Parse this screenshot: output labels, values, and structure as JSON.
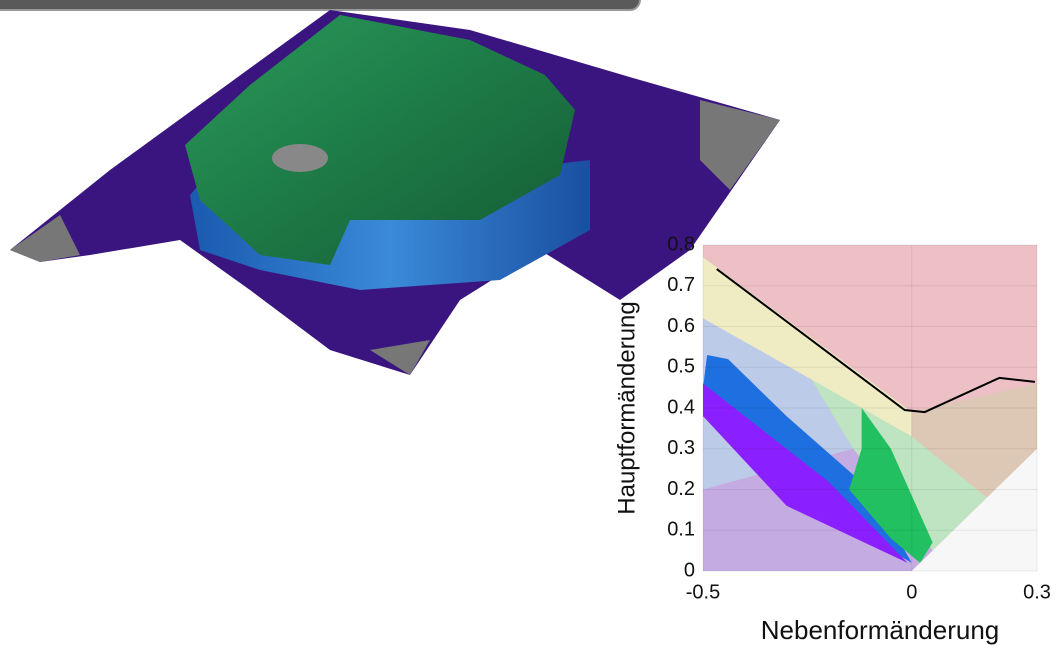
{
  "chart_data": {
    "type": "line",
    "xlabel": "Nebenformänderung",
    "ylabel": "Hauptformänderung",
    "xlim": [
      -0.5,
      0.3
    ],
    "ylim": [
      0,
      0.8
    ],
    "xticks": [
      -0.5,
      0,
      0.3
    ],
    "yticks": [
      0,
      0.1,
      0.2,
      0.3,
      0.4,
      0.5,
      0.6,
      0.7,
      0.8
    ],
    "grid": true,
    "x": [
      -0.467,
      -0.017,
      0.031,
      0.21,
      0.295
    ],
    "series": [
      {
        "color": "#000000",
        "values": [
          0.741,
          0.395,
          0.39,
          0.474,
          0.464
        ]
      }
    ],
    "regions": [
      {
        "color": "#ecc0c4",
        "x": [
          -0.5,
          0.3,
          0.3,
          -0.5
        ],
        "y": [
          0.8,
          0.8,
          0,
          0
        ]
      },
      {
        "color": "#efebc2",
        "x": [
          -0.5,
          0.0,
          0.0,
          -0.5
        ],
        "y": [
          0.77,
          0.39,
          0.33,
          0.62
        ]
      },
      {
        "color": "#dcc8b4",
        "x": [
          0.0,
          0.3,
          0.3,
          0.18,
          0.0
        ],
        "y": [
          0.39,
          0.46,
          0.3,
          0.18,
          0.33
        ]
      },
      {
        "color": "#bccbe8",
        "x": [
          -0.5,
          -0.24,
          -0.14,
          -0.5
        ],
        "y": [
          0.62,
          0.47,
          0.3,
          0.2
        ]
      },
      {
        "color": "#bfe4c2",
        "x": [
          -0.24,
          0.0,
          0.18,
          0.05,
          -0.14
        ],
        "y": [
          0.47,
          0.33,
          0.18,
          0.05,
          0.3
        ]
      },
      {
        "color": "#c4ace2",
        "x": [
          -0.5,
          -0.14,
          0.05,
          0.0,
          -0.5
        ],
        "y": [
          0.2,
          0.3,
          0.05,
          0,
          0
        ]
      },
      {
        "color": "#f7f7f7",
        "x": [
          0.0,
          0.05,
          0.18,
          0.3,
          0.3
        ],
        "y": [
          0,
          0.05,
          0.18,
          0.3,
          0
        ]
      },
      {
        "color": "#1e70e0",
        "x": [
          -0.49,
          -0.44,
          -0.3,
          -0.1,
          0.0,
          -0.05,
          -0.3,
          -0.5
        ],
        "y": [
          0.53,
          0.52,
          0.38,
          0.2,
          0.02,
          0.05,
          0.25,
          0.45
        ]
      },
      {
        "color": "#8a20ff",
        "x": [
          -0.5,
          -0.2,
          -0.01,
          -0.3,
          -0.5
        ],
        "y": [
          0.46,
          0.22,
          0.02,
          0.16,
          0.38
        ]
      },
      {
        "color": "#22c060",
        "x": [
          -0.12,
          -0.05,
          0.05,
          0.02,
          -0.05,
          -0.15,
          -0.12
        ],
        "y": [
          0.4,
          0.3,
          0.07,
          0.02,
          0.08,
          0.2,
          0.3
        ]
      }
    ]
  }
}
